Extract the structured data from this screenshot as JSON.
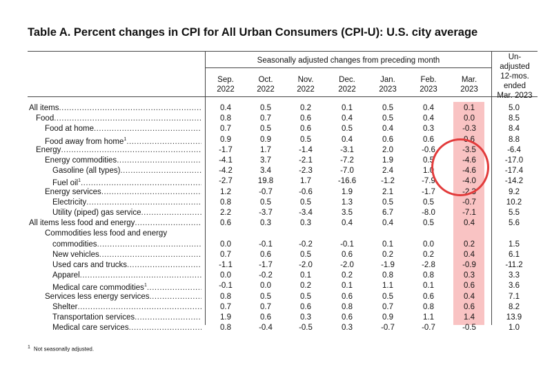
{
  "title": "Table A. Percent changes in CPI for All Urban Consumers (CPI-U): U.S. city average",
  "header": {
    "seasonal": "Seasonally adjusted changes from preceding month",
    "unadjusted": [
      "Un-",
      "adjusted",
      "12-mos.",
      "ended",
      "Mar. 2023"
    ],
    "months": [
      [
        "Sep.",
        "2022"
      ],
      [
        "Oct.",
        "2022"
      ],
      [
        "Nov.",
        "2022"
      ],
      [
        "Dec.",
        "2022"
      ],
      [
        "Jan.",
        "2023"
      ],
      [
        "Feb.",
        "2023"
      ],
      [
        "Mar.",
        "2023"
      ]
    ]
  },
  "rows": [
    {
      "label": "All items",
      "indent": 0,
      "values": [
        "0.4",
        "0.5",
        "0.2",
        "0.1",
        "0.5",
        "0.4",
        "0.1",
        "5.0"
      ]
    },
    {
      "label": "Food",
      "indent": 1,
      "values": [
        "0.8",
        "0.7",
        "0.6",
        "0.4",
        "0.5",
        "0.4",
        "0.0",
        "8.5"
      ]
    },
    {
      "label": "Food at home",
      "indent": 2,
      "values": [
        "0.7",
        "0.5",
        "0.6",
        "0.5",
        "0.4",
        "0.3",
        "-0.3",
        "8.4"
      ]
    },
    {
      "label": "Food away from home",
      "sup": "1",
      "indent": 2,
      "values": [
        "0.9",
        "0.9",
        "0.5",
        "0.4",
        "0.6",
        "0.6",
        "0.6",
        "8.8"
      ]
    },
    {
      "label": "Energy",
      "indent": 1,
      "values": [
        "-1.7",
        "1.7",
        "-1.4",
        "-3.1",
        "2.0",
        "-0.6",
        "-3.5",
        "-6.4"
      ]
    },
    {
      "label": "Energy commodities",
      "indent": 2,
      "values": [
        "-4.1",
        "3.7",
        "-2.1",
        "-7.2",
        "1.9",
        "0.5",
        "-4.6",
        "-17.0"
      ]
    },
    {
      "label": "Gasoline (all types)",
      "indent": 3,
      "values": [
        "-4.2",
        "3.4",
        "-2.3",
        "-7.0",
        "2.4",
        "1.0",
        "-4.6",
        "-17.4"
      ]
    },
    {
      "label": "Fuel oil",
      "sup": "1",
      "indent": 3,
      "values": [
        "-2.7",
        "19.8",
        "1.7",
        "-16.6",
        "-1.2",
        "-7.9",
        "-4.0",
        "-14.2"
      ]
    },
    {
      "label": "Energy services",
      "indent": 2,
      "values": [
        "1.2",
        "-0.7",
        "-0.6",
        "1.9",
        "2.1",
        "-1.7",
        "-2.3",
        "9.2"
      ]
    },
    {
      "label": "Electricity",
      "indent": 3,
      "values": [
        "0.8",
        "0.5",
        "0.5",
        "1.3",
        "0.5",
        "0.5",
        "-0.7",
        "10.2"
      ]
    },
    {
      "label": "Utility (piped) gas service",
      "indent": 3,
      "values": [
        "2.2",
        "-3.7",
        "-3.4",
        "3.5",
        "6.7",
        "-8.0",
        "-7.1",
        "5.5"
      ]
    },
    {
      "label": "All items less food and energy",
      "indent": 0,
      "values": [
        "0.6",
        "0.3",
        "0.3",
        "0.4",
        "0.4",
        "0.5",
        "0.4",
        "5.6"
      ]
    },
    {
      "label": "Commodities less food and energy",
      "indent": 2,
      "noleader": true,
      "values": [
        "",
        "",
        "",
        "",
        "",
        "",
        "",
        ""
      ]
    },
    {
      "label": "commodities",
      "indent": 3,
      "values": [
        "0.0",
        "-0.1",
        "-0.2",
        "-0.1",
        "0.1",
        "0.0",
        "0.2",
        "1.5"
      ]
    },
    {
      "label": "New vehicles",
      "indent": 3,
      "values": [
        "0.7",
        "0.6",
        "0.5",
        "0.6",
        "0.2",
        "0.2",
        "0.4",
        "6.1"
      ]
    },
    {
      "label": "Used cars and trucks",
      "indent": 3,
      "values": [
        "-1.1",
        "-1.7",
        "-2.0",
        "-2.0",
        "-1.9",
        "-2.8",
        "-0.9",
        "-11.2"
      ]
    },
    {
      "label": "Apparel",
      "indent": 3,
      "values": [
        "0.0",
        "-0.2",
        "0.1",
        "0.2",
        "0.8",
        "0.8",
        "0.3",
        "3.3"
      ]
    },
    {
      "label": "Medical care commodities",
      "sup": "1",
      "indent": 3,
      "values": [
        "-0.1",
        "0.0",
        "0.2",
        "0.1",
        "1.1",
        "0.1",
        "0.6",
        "3.6"
      ]
    },
    {
      "label": "Services less energy services",
      "indent": 2,
      "values": [
        "0.8",
        "0.5",
        "0.5",
        "0.6",
        "0.5",
        "0.6",
        "0.4",
        "7.1"
      ]
    },
    {
      "label": "Shelter",
      "indent": 3,
      "values": [
        "0.7",
        "0.7",
        "0.6",
        "0.8",
        "0.7",
        "0.8",
        "0.6",
        "8.2"
      ]
    },
    {
      "label": "Transportation services",
      "indent": 3,
      "values": [
        "1.9",
        "0.6",
        "0.3",
        "0.6",
        "0.9",
        "1.1",
        "1.4",
        "13.9"
      ]
    },
    {
      "label": "Medical care services",
      "indent": 3,
      "values": [
        "0.8",
        "-0.4",
        "-0.5",
        "0.3",
        "-0.7",
        "-0.7",
        "-0.5",
        "1.0"
      ]
    }
  ],
  "footnote": {
    "mark": "1",
    "text": "Not seasonally adjusted."
  },
  "colors": {
    "highlight": "#f9c3c3",
    "circle": "#e23b3b"
  }
}
